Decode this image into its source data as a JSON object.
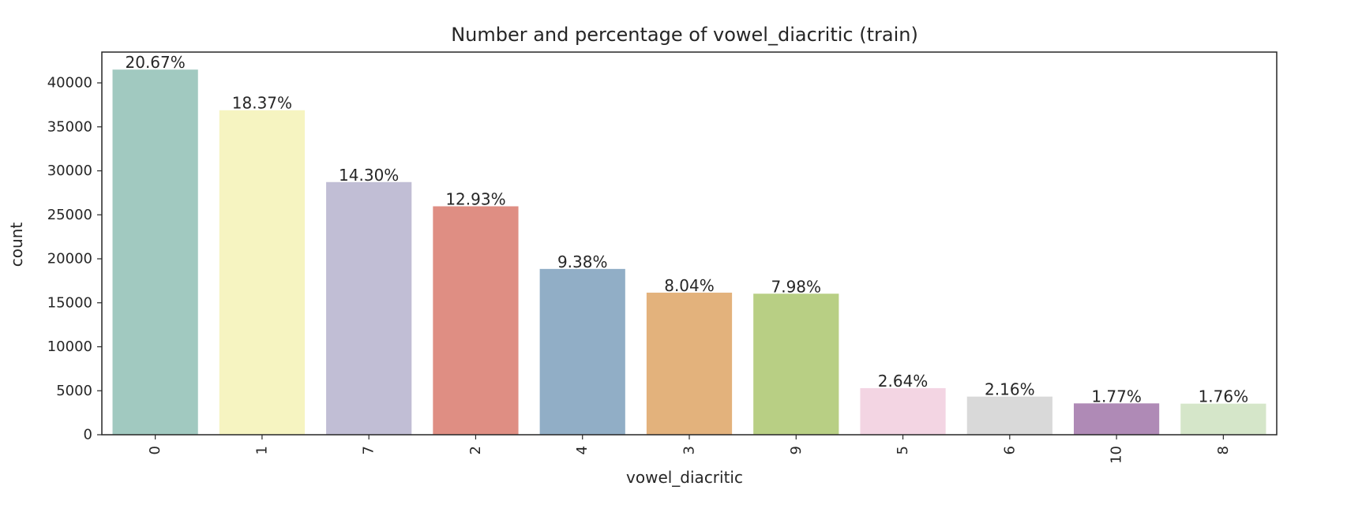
{
  "chart_data": {
    "type": "bar",
    "title": "Number and percentage of vowel_diacritic (train)",
    "xlabel": "vowel_diacritic",
    "ylabel": "count",
    "categories": [
      "0",
      "1",
      "7",
      "2",
      "4",
      "3",
      "9",
      "5",
      "6",
      "10",
      "8"
    ],
    "values": [
      41508,
      36886,
      28723,
      25967,
      18848,
      16152,
      16032,
      5297,
      4336,
      3563,
      3532
    ],
    "percent_labels": [
      "20.67%",
      "18.37%",
      "14.30%",
      "12.93%",
      "9.38%",
      "8.04%",
      "7.98%",
      "2.64%",
      "2.16%",
      "1.77%",
      "1.76%"
    ],
    "colors": [
      "#a1c9c0",
      "#f6f4c1",
      "#c1bed5",
      "#df8e83",
      "#91aec6",
      "#e3b27c",
      "#b8cf84",
      "#f3d5e3",
      "#d9d9d9",
      "#af8ab6",
      "#d5e6c9"
    ],
    "yticks": [
      "0",
      "5000",
      "10000",
      "15000",
      "20000",
      "25000",
      "30000",
      "35000",
      "40000"
    ],
    "ylim": [
      0,
      43500
    ],
    "grid": false,
    "legend": false
  }
}
